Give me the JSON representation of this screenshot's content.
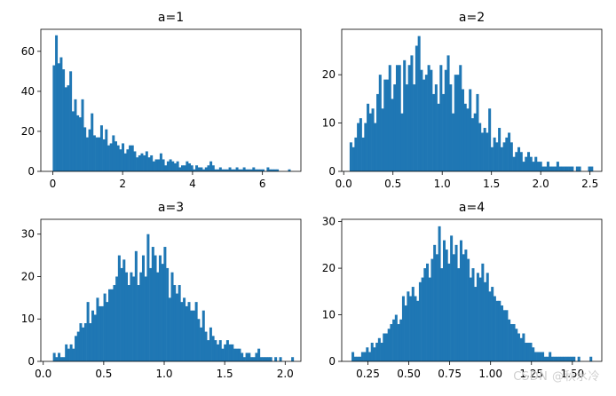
{
  "figure": {
    "watermark": "CSDN @秋水冷"
  },
  "chart_data": [
    {
      "type": "bar",
      "title": "a=1",
      "xlabel": "",
      "ylabel": "",
      "color": "#1f77b4",
      "xlim": [
        -0.34,
        7.1
      ],
      "ylim": [
        0,
        71
      ],
      "xticks": [
        0,
        2,
        4,
        6
      ],
      "yticks": [
        0,
        20,
        40,
        60
      ],
      "grid": false,
      "bin_range": [
        0.0,
        6.8
      ],
      "values": [
        53,
        68,
        54,
        57,
        51,
        42,
        43,
        50,
        30,
        36,
        28,
        27,
        36,
        22,
        17,
        21,
        29,
        18,
        17,
        17,
        23,
        16,
        21,
        13,
        14,
        18,
        15,
        13,
        11,
        14,
        9,
        11,
        13,
        13,
        10,
        7,
        8,
        9,
        8,
        10,
        7,
        8,
        5,
        6,
        6,
        9,
        6,
        3,
        5,
        6,
        5,
        4,
        5,
        2,
        3,
        3,
        5,
        4,
        3,
        1,
        3,
        2,
        2,
        1,
        2,
        3,
        5,
        3,
        1,
        1,
        2,
        1,
        1,
        1,
        2,
        1,
        1,
        2,
        1,
        1,
        2,
        1,
        1,
        1,
        2,
        1,
        1,
        1,
        1,
        0,
        2,
        1,
        1,
        1,
        1,
        0,
        0,
        0,
        0,
        1
      ]
    },
    {
      "type": "bar",
      "title": "a=2",
      "xlabel": "",
      "ylabel": "",
      "color": "#1f77b4",
      "xlim": [
        -0.02,
        2.62
      ],
      "ylim": [
        0,
        29.4
      ],
      "xticks": [
        0.0,
        0.5,
        1.0,
        1.5,
        2.0,
        2.5
      ],
      "yticks": [
        0,
        10,
        20
      ],
      "grid": false,
      "bin_range": [
        0.06,
        2.53
      ],
      "values": [
        6,
        5,
        7,
        10,
        11,
        7,
        10,
        14,
        12,
        13,
        10,
        16,
        20,
        13,
        19,
        19,
        22,
        15,
        18,
        22,
        22,
        12,
        23,
        18,
        22,
        24,
        18,
        26,
        28,
        21,
        19,
        20,
        22,
        21,
        16,
        18,
        14,
        22,
        16,
        21,
        24,
        18,
        12,
        20,
        20,
        22,
        17,
        14,
        13,
        17,
        11,
        12,
        16,
        10,
        8,
        9,
        8,
        13,
        5,
        7,
        6,
        9,
        5,
        6,
        7,
        8,
        6,
        3,
        4,
        5,
        4,
        2,
        3,
        4,
        3,
        2,
        3,
        2,
        2,
        1,
        1,
        2,
        1,
        1,
        1,
        2,
        1,
        1,
        1,
        1,
        1,
        1,
        0,
        1,
        1,
        0,
        0,
        0,
        1,
        1
      ]
    },
    {
      "type": "bar",
      "title": "a=3",
      "xlabel": "",
      "ylabel": "",
      "color": "#1f77b4",
      "xlim": [
        -0.02,
        2.13
      ],
      "ylim": [
        0,
        33.5
      ],
      "xticks": [
        0.0,
        0.5,
        1.0,
        1.5,
        2.0
      ],
      "yticks": [
        0,
        10,
        20,
        30
      ],
      "grid": false,
      "bin_range": [
        0.08,
        2.07
      ],
      "values": [
        2,
        1,
        2,
        1,
        1,
        4,
        3,
        4,
        3,
        6,
        7,
        9,
        8,
        9,
        14,
        9,
        12,
        11,
        15,
        13,
        13,
        16,
        14,
        17,
        17,
        18,
        20,
        25,
        22,
        24,
        21,
        18,
        21,
        20,
        26,
        18,
        21,
        25,
        20,
        30,
        22,
        27,
        25,
        21,
        25,
        23,
        27,
        22,
        15,
        21,
        18,
        16,
        18,
        14,
        15,
        13,
        14,
        12,
        12,
        14,
        10,
        8,
        12,
        7,
        5,
        8,
        6,
        5,
        4,
        5,
        3,
        4,
        5,
        4,
        4,
        3,
        3,
        3,
        2,
        1,
        2,
        2,
        1,
        1,
        2,
        3,
        1,
        1,
        1,
        1,
        1,
        0,
        1,
        0,
        1,
        0,
        0,
        0,
        0,
        1
      ]
    },
    {
      "type": "bar",
      "title": "a=4",
      "xlabel": "",
      "ylabel": "",
      "color": "#1f77b4",
      "xlim": [
        0.09,
        1.68
      ],
      "ylim": [
        0,
        30.5
      ],
      "xticks": [
        0.25,
        0.5,
        0.75,
        1.0,
        1.25,
        1.5
      ],
      "yticks": [
        0,
        10,
        20,
        30
      ],
      "grid": false,
      "bin_range": [
        0.15,
        1.62
      ],
      "values": [
        2,
        1,
        1,
        1,
        2,
        2,
        3,
        2,
        4,
        3,
        4,
        5,
        4,
        6,
        6,
        7,
        8,
        9,
        10,
        8,
        9,
        14,
        12,
        15,
        14,
        16,
        14,
        13,
        17,
        18,
        20,
        21,
        18,
        22,
        25,
        23,
        29,
        20,
        26,
        24,
        21,
        27,
        23,
        25,
        20,
        26,
        23,
        24,
        22,
        18,
        20,
        16,
        19,
        18,
        21,
        17,
        19,
        15,
        16,
        14,
        13,
        13,
        12,
        11,
        11,
        9,
        8,
        8,
        7,
        6,
        5,
        6,
        4,
        4,
        4,
        3,
        2,
        2,
        2,
        2,
        1,
        1,
        2,
        1,
        1,
        1,
        1,
        1,
        1,
        1,
        1,
        1,
        1,
        0,
        1,
        0,
        0,
        0,
        0,
        1
      ]
    }
  ]
}
